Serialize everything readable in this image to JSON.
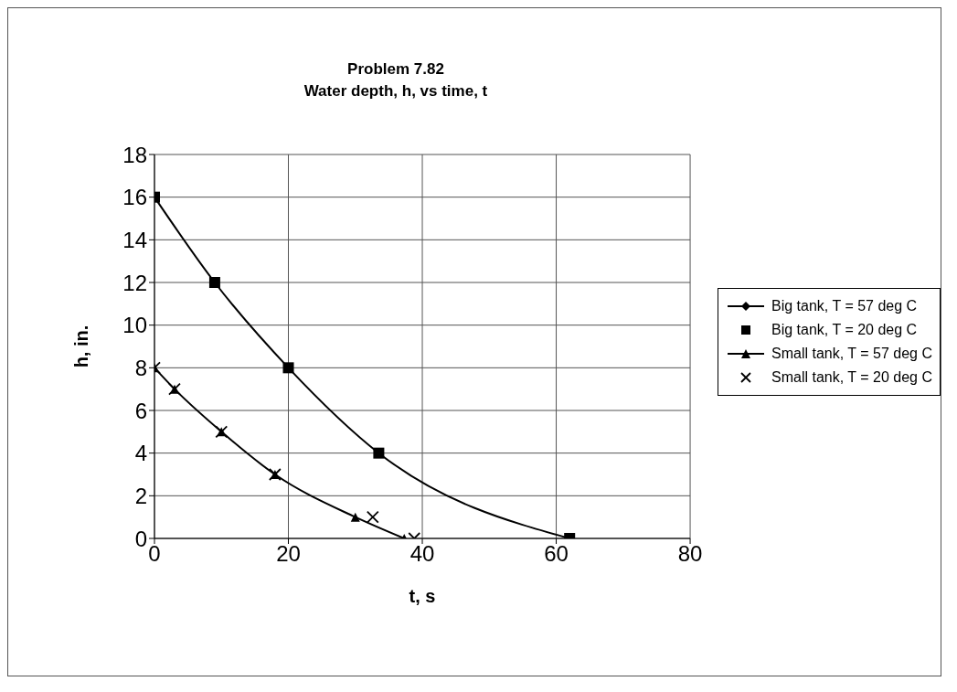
{
  "chart_data": {
    "type": "line",
    "title": "Problem 7.82",
    "subtitle": "Water depth, h, vs time, t",
    "xlabel": "t, s",
    "ylabel": "h, in.",
    "xlim": [
      0,
      80
    ],
    "xticks": [
      0,
      20,
      40,
      60,
      80
    ],
    "ylim": [
      0,
      18
    ],
    "yticks": [
      0,
      2,
      4,
      6,
      8,
      10,
      12,
      14,
      16,
      18
    ],
    "grid": true,
    "legend": "right",
    "series": [
      {
        "name": "Big tank, T = 57 deg C",
        "marker": "diamond",
        "color": "#000000",
        "x": [
          0,
          9,
          20,
          33.5,
          62
        ],
        "values": [
          16,
          12,
          8,
          4,
          0
        ]
      },
      {
        "name": "Big tank, T = 20 deg C",
        "type": "scatter",
        "marker": "square",
        "color": "#000000",
        "x": [
          0,
          9,
          20,
          33.5,
          62
        ],
        "values": [
          16,
          12,
          8,
          4,
          0
        ]
      },
      {
        "name": "Small tank, T = 57 deg C",
        "marker": "triangle",
        "color": "#000000",
        "x": [
          0,
          3,
          10,
          18,
          30,
          37.3
        ],
        "values": [
          8,
          7,
          5,
          3,
          1,
          0
        ]
      },
      {
        "name": "Small tank, T = 20 deg C",
        "type": "scatter",
        "marker": "cross",
        "color": "#000000",
        "x": [
          0,
          3,
          10,
          18,
          32.6,
          38.8
        ],
        "values": [
          8,
          7,
          5,
          3,
          1,
          0
        ]
      }
    ]
  }
}
